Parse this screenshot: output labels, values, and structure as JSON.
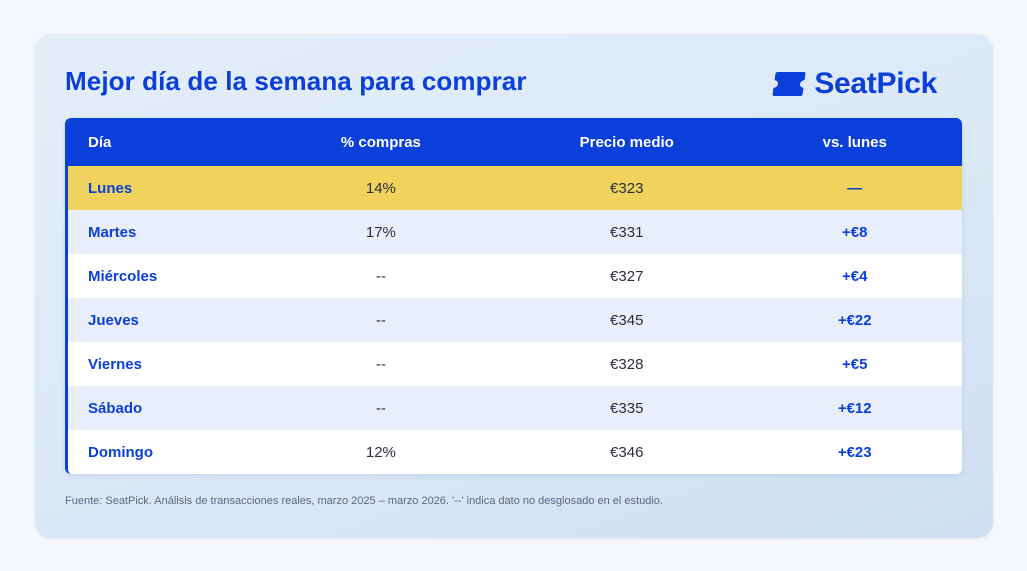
{
  "header": {
    "title": "Mejor día de la semana para comprar",
    "brand": "SeatPick"
  },
  "colors": {
    "accent": "#0a3fd9",
    "highlight_row": "#f0d35c",
    "stripe_row": "#e9eefb"
  },
  "chart_data": {
    "type": "table",
    "columns": [
      "Día",
      "% compras",
      "Precio medio",
      "vs. lunes"
    ],
    "rows": [
      {
        "dia": "Lunes",
        "compras": "14%",
        "precio": "€323",
        "vs": "—",
        "highlight": true
      },
      {
        "dia": "Martes",
        "compras": "17%",
        "precio": "€331",
        "vs": "+€8",
        "highlight": false
      },
      {
        "dia": "Miércoles",
        "compras": "--",
        "precio": "€327",
        "vs": "+€4",
        "highlight": false
      },
      {
        "dia": "Jueves",
        "compras": "--",
        "precio": "€345",
        "vs": "+€22",
        "highlight": false
      },
      {
        "dia": "Viernes",
        "compras": "--",
        "precio": "€328",
        "vs": "+€5",
        "highlight": false
      },
      {
        "dia": "Sábado",
        "compras": "--",
        "precio": "€335",
        "vs": "+€12",
        "highlight": false
      },
      {
        "dia": "Domingo",
        "compras": "12%",
        "precio": "€346",
        "vs": "+€23",
        "highlight": false
      }
    ],
    "footnote": "Fuente: SeatPick. Análisis de transacciones reales, marzo 2025 – marzo 2026. '--' indica dato no desglosado en el estudio."
  }
}
